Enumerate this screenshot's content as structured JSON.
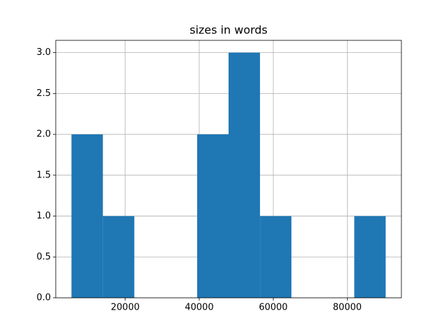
{
  "chart_data": {
    "type": "histogram",
    "title": "sizes in words",
    "bins": [
      5472,
      13962,
      22453,
      30943,
      39434,
      47924,
      56415,
      64905,
      73396,
      81886,
      90377
    ],
    "values": [
      2,
      1,
      0,
      0,
      2,
      3,
      1,
      0,
      0,
      1
    ],
    "color": "#1f77b4",
    "xlim": [
      1227,
      94622
    ],
    "xticks": [
      20000,
      40000,
      60000,
      80000
    ],
    "ylim": [
      0,
      3.15
    ],
    "yticks": [
      {
        "value": 0,
        "label": "0.0"
      },
      {
        "value": 0.5,
        "label": "0.5"
      },
      {
        "value": 1,
        "label": "1.0"
      },
      {
        "value": 1.5,
        "label": "1.5"
      },
      {
        "value": 2,
        "label": "2.0"
      },
      {
        "value": 2.5,
        "label": "2.5"
      },
      {
        "value": 3,
        "label": "3.0"
      }
    ],
    "grid": true
  }
}
